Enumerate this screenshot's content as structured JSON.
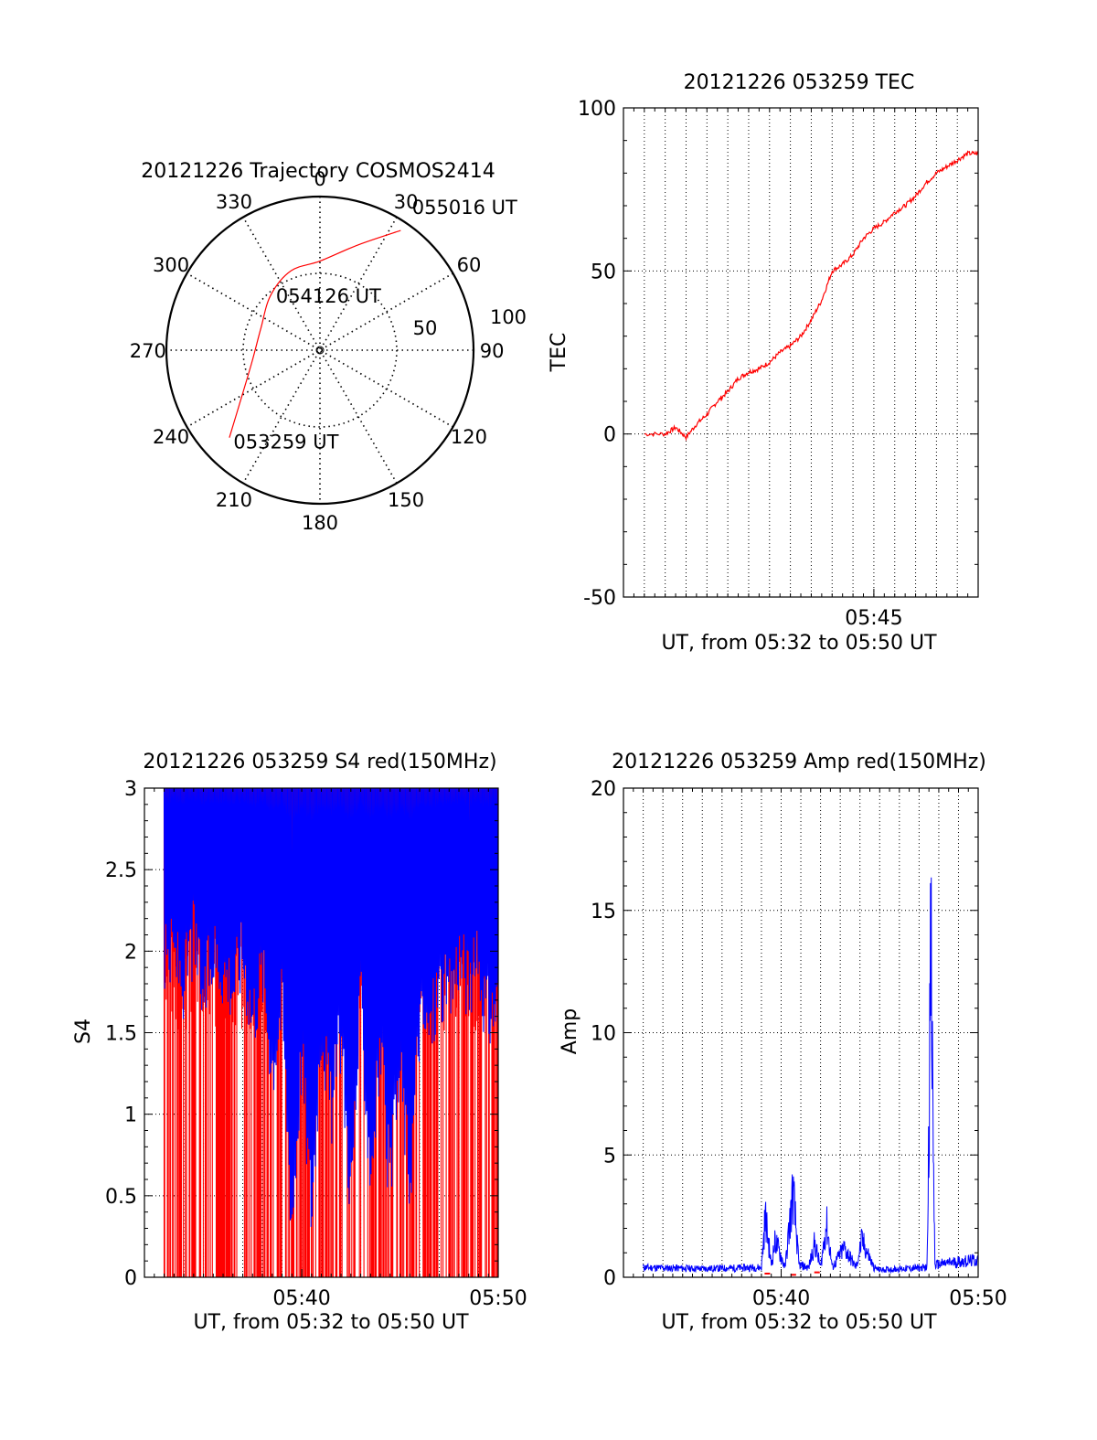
{
  "colors": {
    "red": "#ff0000",
    "blue": "#0000ff",
    "axis": "#000000",
    "grid": "#000000"
  },
  "chart_data": [
    {
      "type": "polar",
      "title": "20121226 Trajectory COSMOS2414",
      "azimuth_labels": [
        "0",
        "30",
        "60",
        "90",
        "120",
        "150",
        "180",
        "210",
        "240",
        "270",
        "300",
        "330"
      ],
      "radial_labels": [
        "50",
        "100"
      ],
      "trajectory": {
        "color": "red",
        "points": [
          {
            "az": 226,
            "r": 82
          },
          {
            "az": 237,
            "r": 62
          },
          {
            "az": 260,
            "r": 45
          },
          {
            "az": 290,
            "r": 41
          },
          {
            "az": 318,
            "r": 48
          },
          {
            "az": 340,
            "r": 55
          },
          {
            "az": 0,
            "r": 58
          },
          {
            "az": 20,
            "r": 73
          },
          {
            "az": 34,
            "r": 94
          }
        ]
      },
      "annotations": [
        {
          "text": "053259 UT",
          "az": 226,
          "r": 82
        },
        {
          "text": "054126 UT",
          "az": 355,
          "r": 18
        },
        {
          "text": "055016 UT",
          "az": 34,
          "r": 94
        }
      ]
    },
    {
      "type": "line",
      "title": "20121226 053259 TEC",
      "xlabel": "UT, from 05:32 to 05:50 UT",
      "ylabel": "TEC",
      "xlim": [
        5.55,
        5.8333
      ],
      "ylim": [
        -50,
        100
      ],
      "yticks": [
        -50,
        0,
        50,
        100
      ],
      "xticks": [
        {
          "value": 5.75,
          "label": "05:45"
        }
      ],
      "series": [
        {
          "color": "red",
          "x": [
            5.5667,
            5.5833,
            5.5917,
            5.6,
            5.6083,
            5.6167,
            5.625,
            5.6333,
            5.6417,
            5.65,
            5.6583,
            5.6667,
            5.675,
            5.6833,
            5.6917,
            5.7,
            5.7083,
            5.7167,
            5.725,
            5.7333,
            5.7417,
            5.75,
            5.7583,
            5.7667,
            5.775,
            5.7833,
            5.7917,
            5.8,
            5.8083,
            5.8167,
            5.825,
            5.8333
          ],
          "y": [
            0,
            0,
            2,
            -1,
            3,
            6,
            10,
            13,
            17,
            19,
            20,
            22,
            25,
            27,
            30,
            35,
            41,
            50,
            52,
            55,
            60,
            63,
            65,
            68,
            70,
            73,
            77,
            80,
            82,
            84,
            86,
            86
          ]
        }
      ]
    },
    {
      "type": "line",
      "title": "20121226 053259 S4 red(150MHz)",
      "xlabel": "UT, from 05:32 to 05:50 UT",
      "ylabel": "S4",
      "xlim": [
        5.5333,
        5.8333
      ],
      "ylim": [
        0,
        3
      ],
      "yticks": [
        0,
        0.5,
        1,
        1.5,
        2,
        2.5,
        3
      ],
      "xticks": [
        {
          "value": 5.6667,
          "label": "05:40"
        },
        {
          "value": 5.8333,
          "label": "05:50"
        }
      ],
      "series": [
        {
          "color": "red",
          "description_free": true,
          "x_range": [
            5.55,
            5.8333
          ],
          "pattern": "dense vertical spikes 0 to 3"
        },
        {
          "color": "blue",
          "x": [
            5.55,
            5.5583,
            5.5667,
            5.575,
            5.5833,
            5.5917,
            5.6,
            5.6083,
            5.6167,
            5.625,
            5.6333,
            5.6417,
            5.65,
            5.6583,
            5.6667,
            5.675,
            5.6833,
            5.6917,
            5.7,
            5.7083,
            5.7167,
            5.725,
            5.7333,
            5.7417,
            5.75,
            5.7583,
            5.7667,
            5.775,
            5.7833,
            5.7917,
            5.8,
            5.8083,
            5.8167,
            5.825,
            5.8333
          ],
          "y": [
            1.9,
            2.0,
            1.8,
            2.1,
            1.7,
            2.0,
            1.9,
            1.8,
            2.0,
            1.6,
            1.9,
            1.3,
            1.7,
            0.35,
            1.4,
            0.4,
            1.6,
            1.0,
            1.5,
            0.5,
            1.7,
            0.65,
            1.4,
            0.55,
            1.3,
            0.6,
            1.6,
            1.5,
            1.8,
            1.7,
            2.0,
            1.8,
            1.9,
            1.6,
            1.7
          ]
        }
      ]
    },
    {
      "type": "line",
      "title": "20121226 053259 Amp red(150MHz)",
      "xlabel": "UT, from 05:32 to 05:50 UT",
      "ylabel": "Amp",
      "xlim": [
        5.5333,
        5.8333
      ],
      "ylim": [
        0,
        20
      ],
      "yticks": [
        0,
        5,
        10,
        15,
        20
      ],
      "xticks": [
        {
          "value": 5.6667,
          "label": "05:40"
        },
        {
          "value": 5.8333,
          "label": "05:50"
        }
      ],
      "series": [
        {
          "color": "blue",
          "x": [
            5.55,
            5.6,
            5.65,
            5.6533,
            5.6583,
            5.6617,
            5.67,
            5.6767,
            5.6817,
            5.69,
            5.695,
            5.7,
            5.705,
            5.71,
            5.72,
            5.73,
            5.735,
            5.745,
            5.75,
            5.77,
            5.79,
            5.7933,
            5.7967,
            5.81,
            5.8333
          ],
          "y": [
            0.4,
            0.35,
            0.4,
            2.5,
            0.5,
            1.5,
            0.4,
            3.5,
            0.5,
            0.4,
            1.4,
            0.4,
            2.2,
            0.4,
            1.2,
            0.4,
            1.5,
            0.4,
            0.3,
            0.35,
            0.4,
            13.1,
            0.5,
            0.6,
            0.7
          ]
        },
        {
          "color": "red",
          "x": [
            5.655,
            5.677,
            5.697
          ],
          "y": [
            0.15,
            0.1,
            0.2
          ]
        }
      ]
    }
  ]
}
